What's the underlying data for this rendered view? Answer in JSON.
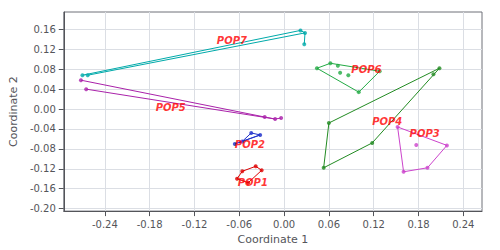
{
  "chart_data": {
    "type": "scatter",
    "xlabel": "Coordinate 1",
    "ylabel": "Coordinate 2",
    "xlim": [
      -0.295,
      0.265
    ],
    "ylim": [
      -0.205,
      0.195
    ],
    "xticks": [
      -0.24,
      -0.18,
      -0.12,
      -0.06,
      {
        "value": 0.0,
        "label": "0.00"
      },
      0.06,
      0.12,
      0.18,
      0.24
    ],
    "yticks": [
      {
        "value": -0.2,
        "label": "-0.20"
      },
      -0.16,
      -0.12,
      -0.08,
      -0.04,
      {
        "value": 0.0,
        "label": "0.00"
      },
      0.04,
      0.08,
      0.12,
      0.16
    ],
    "grid": true,
    "series": [
      {
        "color": "#dd0000",
        "x": [
          -0.056,
          -0.063,
          -0.048,
          -0.038,
          -0.03
        ],
        "values": [
          -0.125,
          -0.14,
          -0.148,
          -0.115,
          -0.123
        ],
        "edges": [
          [
            1,
            0
          ],
          [
            0,
            3
          ],
          [
            3,
            4
          ],
          [
            4,
            2
          ],
          [
            2,
            1
          ]
        ]
      },
      {
        "color": "#2233cc",
        "x": [
          -0.066,
          -0.056,
          -0.044,
          -0.032
        ],
        "values": [
          -0.07,
          -0.065,
          -0.048,
          -0.052
        ],
        "edges": [
          [
            0,
            1
          ],
          [
            1,
            2
          ],
          [
            2,
            3
          ],
          [
            0,
            3
          ],
          [
            1,
            3
          ]
        ]
      },
      {
        "color": "#cc44cc",
        "x": [
          0.152,
          0.177,
          0.218,
          0.192,
          0.16
        ],
        "values": [
          -0.036,
          -0.072,
          -0.073,
          -0.118,
          -0.126
        ],
        "edges": [
          [
            0,
            4
          ],
          [
            4,
            3
          ],
          [
            3,
            2
          ],
          [
            2,
            0
          ]
        ]
      },
      {
        "color": "#228b22",
        "x": [
          0.06,
          0.053,
          0.118,
          0.2,
          0.208
        ],
        "values": [
          -0.028,
          -0.118,
          -0.068,
          0.07,
          0.082
        ],
        "edges": [
          [
            1,
            0
          ],
          [
            0,
            4
          ],
          [
            4,
            2
          ],
          [
            2,
            1
          ]
        ]
      },
      {
        "color": "#aa22aa",
        "x": [
          -0.272,
          -0.265,
          -0.026,
          -0.012,
          -0.004
        ],
        "values": [
          0.058,
          0.04,
          -0.016,
          -0.02,
          -0.018
        ],
        "edges": [
          [
            0,
            2
          ],
          [
            1,
            3
          ],
          [
            2,
            3
          ],
          [
            3,
            4
          ]
        ]
      },
      {
        "color": "#22aa44",
        "x": [
          0.044,
          0.062,
          0.072,
          0.086,
          0.1,
          0.128,
          0.075
        ],
        "values": [
          0.082,
          0.092,
          0.087,
          0.068,
          0.034,
          0.076,
          0.073
        ],
        "edges": [
          [
            0,
            1
          ],
          [
            1,
            5
          ],
          [
            5,
            4
          ],
          [
            4,
            0
          ]
        ]
      },
      {
        "color": "#00aaaa",
        "x": [
          -0.27,
          -0.263,
          0.022,
          0.028,
          0.027
        ],
        "values": [
          0.068,
          0.068,
          0.158,
          0.153,
          0.13
        ],
        "edges": [
          [
            0,
            2
          ],
          [
            1,
            3
          ],
          [
            2,
            3
          ],
          [
            3,
            4
          ]
        ]
      }
    ],
    "annotations": [
      {
        "text": "POP1",
        "x": -0.062,
        "y": -0.157,
        "color": "red"
      },
      {
        "text": "POP2",
        "x": -0.066,
        "y": -0.082,
        "color": "red"
      },
      {
        "text": "POP3",
        "x": 0.168,
        "y": -0.06,
        "color": "red"
      },
      {
        "text": "POP4",
        "x": 0.118,
        "y": -0.035,
        "color": "red"
      },
      {
        "text": "POP5",
        "x": -0.172,
        "y": -0.006,
        "color": "red"
      },
      {
        "text": "POP6",
        "x": 0.09,
        "y": 0.07,
        "color": "red"
      },
      {
        "text": "POP7",
        "x": -0.09,
        "y": 0.128,
        "color": "red"
      }
    ]
  }
}
